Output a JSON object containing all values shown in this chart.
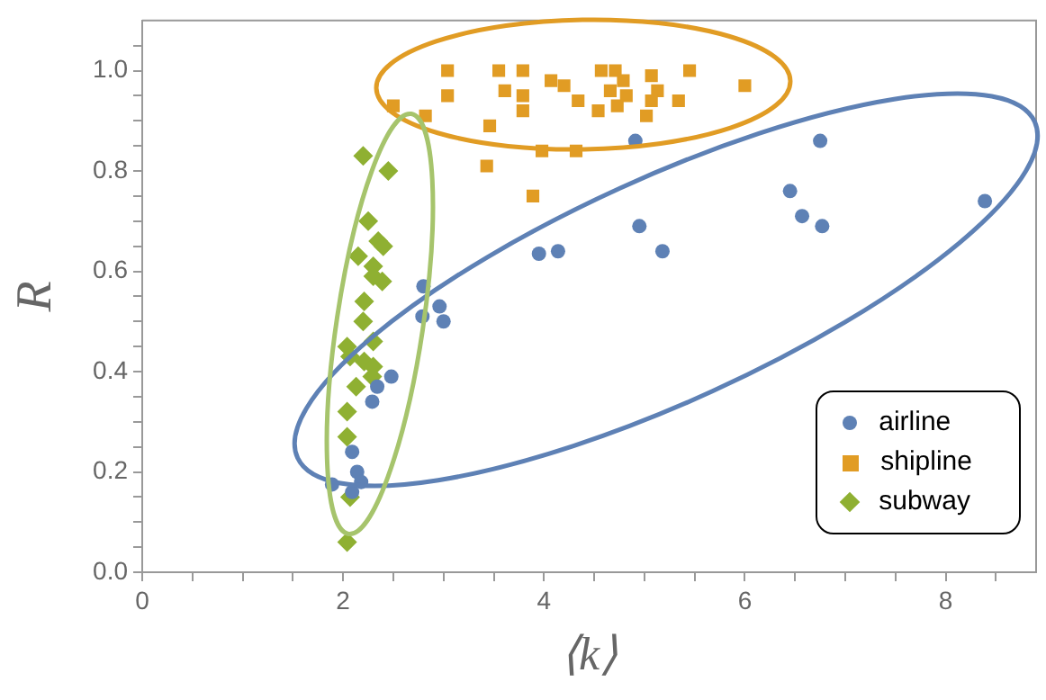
{
  "chart_data": {
    "type": "scatter",
    "xlabel": "⟨k⟩",
    "ylabel": "R",
    "xlim": [
      0,
      8.9
    ],
    "ylim": [
      0,
      1.1
    ],
    "xticks": [
      0,
      {
        "value": 0.5,
        "label": null
      },
      {
        "value": 1,
        "label": null
      },
      {
        "value": 1.5,
        "label": null
      },
      2,
      {
        "value": 2.5,
        "label": null
      },
      {
        "value": 3,
        "label": null
      },
      {
        "value": 3.5,
        "label": null
      },
      4,
      {
        "value": 4.5,
        "label": null
      },
      {
        "value": 5,
        "label": null
      },
      {
        "value": 5.5,
        "label": null
      },
      6,
      {
        "value": 6.5,
        "label": null
      },
      {
        "value": 7,
        "label": null
      },
      {
        "value": 7.5,
        "label": null
      },
      8,
      {
        "value": 8.5,
        "label": null
      }
    ],
    "yticks": [
      {
        "value": 0,
        "label": "0.0"
      },
      {
        "value": 0.05,
        "label": null
      },
      {
        "value": 0.1,
        "label": null
      },
      {
        "value": 0.15,
        "label": null
      },
      0.2,
      {
        "value": 0.25,
        "label": null
      },
      {
        "value": 0.3,
        "label": null
      },
      {
        "value": 0.35,
        "label": null
      },
      0.4,
      {
        "value": 0.45,
        "label": null
      },
      {
        "value": 0.5,
        "label": null
      },
      {
        "value": 0.55,
        "label": null
      },
      0.6,
      {
        "value": 0.65,
        "label": null
      },
      {
        "value": 0.7,
        "label": null
      },
      {
        "value": 0.75,
        "label": null
      },
      0.8,
      {
        "value": 0.85,
        "label": null
      },
      {
        "value": 0.9,
        "label": null
      },
      {
        "value": 0.95,
        "label": null
      },
      {
        "value": 1,
        "label": "1.0"
      },
      {
        "value": 1.05,
        "label": null
      }
    ],
    "grid": false,
    "legend": "bottom right",
    "series": [
      {
        "name": "airline",
        "color": "#5e81b5",
        "marker": "circle",
        "x": [
          2.8,
          2.79,
          2.96,
          3.0,
          2.48,
          2.34,
          2.29,
          2.09,
          2.14,
          2.18,
          1.89,
          2.09,
          4.91,
          6.75,
          6.45,
          6.57,
          6.77,
          8.39,
          4.95,
          5.18,
          3.95,
          4.14
        ],
        "values": [
          0.57,
          0.51,
          0.53,
          0.5,
          0.39,
          0.37,
          0.34,
          0.24,
          0.2,
          0.18,
          0.175,
          0.16,
          0.86,
          0.86,
          0.76,
          0.71,
          0.69,
          0.74,
          0.69,
          0.64,
          0.635,
          0.64
        ]
      },
      {
        "name": "shipline",
        "color": "#e19c24",
        "marker": "square",
        "x": [
          3.04,
          3.55,
          3.79,
          3.04,
          3.61,
          3.79,
          3.79,
          2.5,
          2.82,
          3.46,
          4.07,
          4.2,
          4.34,
          4.57,
          4.71,
          4.79,
          4.66,
          4.82,
          4.73,
          4.54,
          5.07,
          5.13,
          5.07,
          5.02,
          5.34,
          5.45,
          6.0,
          3.98,
          4.32,
          3.43,
          3.89
        ],
        "values": [
          1.0,
          1.0,
          1.0,
          0.95,
          0.96,
          0.95,
          0.92,
          0.93,
          0.91,
          0.89,
          0.98,
          0.97,
          0.94,
          1.0,
          1.0,
          0.98,
          0.96,
          0.95,
          0.93,
          0.92,
          0.99,
          0.96,
          0.94,
          0.91,
          0.94,
          1.0,
          0.97,
          0.84,
          0.84,
          0.81,
          0.75
        ]
      },
      {
        "name": "subway",
        "color": "#8fb032",
        "marker": "diamond",
        "x": [
          2.2,
          2.45,
          2.25,
          2.35,
          2.15,
          2.3,
          2.4,
          2.3,
          2.39,
          2.21,
          2.2,
          2.3,
          2.04,
          2.07,
          2.21,
          2.3,
          2.29,
          2.13,
          2.04,
          2.04,
          2.07,
          2.04
        ],
        "values": [
          0.83,
          0.8,
          0.7,
          0.66,
          0.63,
          0.61,
          0.65,
          0.59,
          0.58,
          0.54,
          0.5,
          0.46,
          0.45,
          0.43,
          0.42,
          0.41,
          0.39,
          0.37,
          0.32,
          0.27,
          0.15,
          0.06
        ]
      }
    ]
  }
}
